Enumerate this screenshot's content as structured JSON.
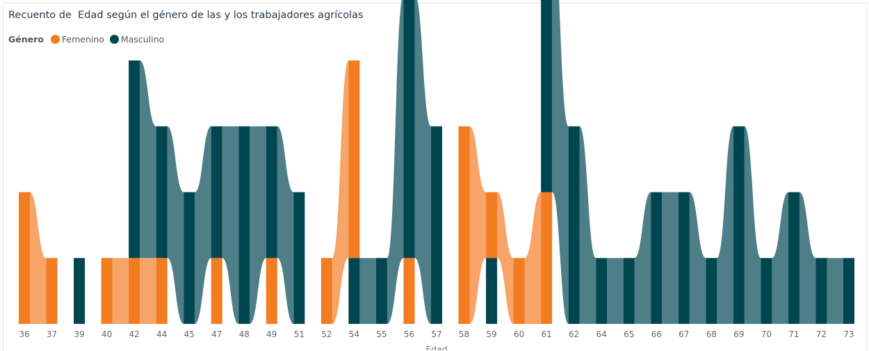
{
  "chart_data": {
    "type": "bar",
    "title": "Recuento de  Edad según el género de las y los trabajadores agrícolas",
    "xlabel": "Edad",
    "ylabel": "",
    "legend_title": "Género",
    "legend_position": "top-left",
    "grid": false,
    "ylim": [
      0,
      4
    ],
    "categories": [
      "36",
      "37",
      "39",
      "40",
      "42",
      "44",
      "45",
      "47",
      "48",
      "49",
      "51",
      "52",
      "54",
      "55",
      "56",
      "57",
      "58",
      "59",
      "60",
      "61",
      "62",
      "64",
      "65",
      "66",
      "67",
      "68",
      "69",
      "70",
      "71",
      "72",
      "73"
    ],
    "series": [
      {
        "name": "Femenino",
        "color": "#F37B20",
        "ribbon_color": "#F6A468",
        "values": [
          2,
          1,
          0,
          1,
          1,
          1,
          0,
          1,
          0,
          1,
          0,
          1,
          3,
          0,
          1,
          0,
          3,
          1,
          1,
          2,
          0,
          0,
          0,
          0,
          0,
          0,
          0,
          0,
          0,
          0,
          0
        ]
      },
      {
        "name": "Masculino",
        "color": "#004650",
        "ribbon_color": "#4E7E87",
        "values": [
          0,
          0,
          1,
          0,
          3,
          2,
          2,
          2,
          3,
          2,
          2,
          0,
          1,
          1,
          4,
          3,
          0,
          1,
          0,
          4,
          3,
          1,
          1,
          2,
          2,
          1,
          3,
          1,
          2,
          1,
          1
        ]
      }
    ]
  }
}
